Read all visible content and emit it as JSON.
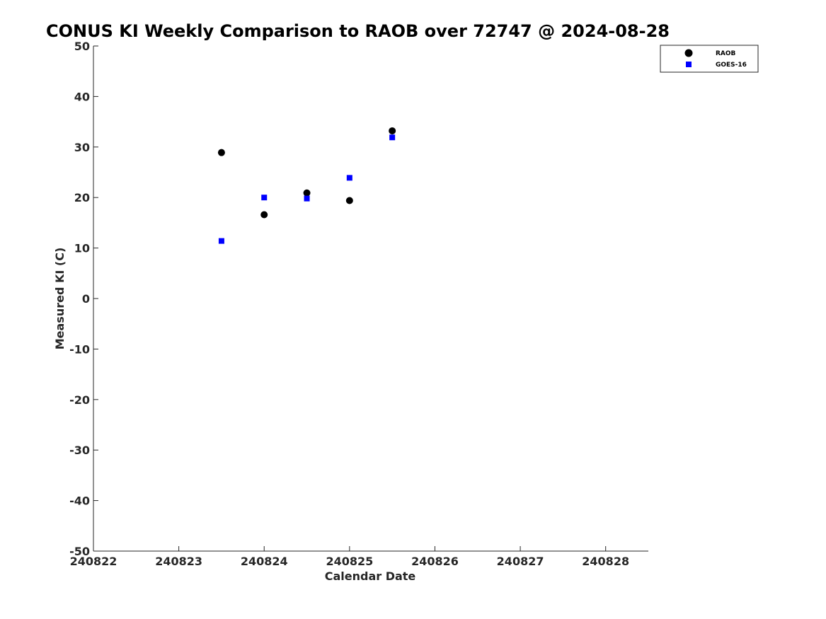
{
  "chart_data": {
    "type": "scatter",
    "title": "CONUS KI Weekly Comparison to RAOB over 72747 @ 2024-08-28",
    "xlabel": "Calendar Date",
    "ylabel": "Measured KI (C)",
    "xlim": [
      240822,
      240828.5
    ],
    "ylim": [
      -50,
      50
    ],
    "xticks": [
      240822,
      240823,
      240824,
      240825,
      240826,
      240827,
      240828
    ],
    "xtick_labels": [
      "240822",
      "240823",
      "240824",
      "240825",
      "240826",
      "240827",
      "240828"
    ],
    "yticks": [
      -50,
      -40,
      -30,
      -20,
      -10,
      0,
      10,
      20,
      30,
      40,
      50
    ],
    "ytick_labels": [
      "-50",
      "-40",
      "-30",
      "-20",
      "-10",
      "0",
      "10",
      "20",
      "30",
      "40",
      "50"
    ],
    "grid": false,
    "legend_position": "top-right",
    "series": [
      {
        "name": "RAOB",
        "marker": "circle",
        "color": "#000000",
        "x": [
          240823.5,
          240824,
          240824.5,
          240825,
          240825.5
        ],
        "y": [
          28.9,
          16.6,
          20.9,
          19.4,
          33.2
        ]
      },
      {
        "name": "GOES-16",
        "marker": "square",
        "color": "#0000ff",
        "x": [
          240823.5,
          240824,
          240824.5,
          240825,
          240825.5
        ],
        "y": [
          11.4,
          20.0,
          19.8,
          23.9,
          31.9
        ]
      }
    ]
  }
}
